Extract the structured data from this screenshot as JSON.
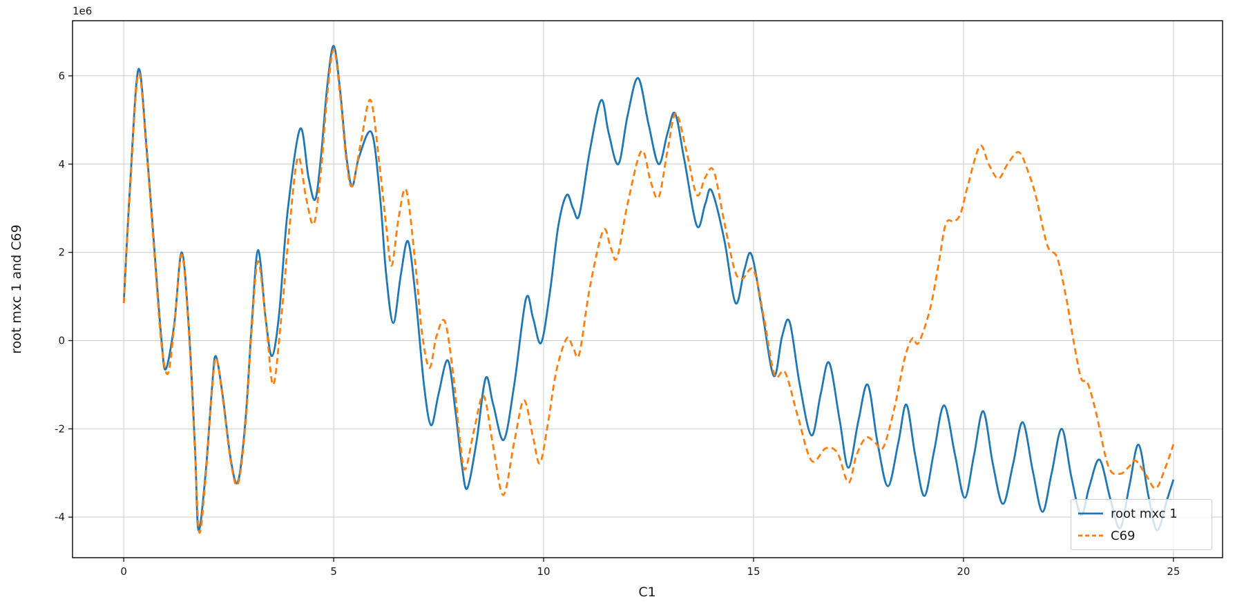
{
  "chart_data": {
    "type": "line",
    "title": "",
    "xlabel": "C1",
    "ylabel": "root mxc 1 and C69",
    "y_offset_label": "1e6",
    "y_unit_multiplier": 1000000,
    "xlim": [
      -1.22,
      26.17
    ],
    "ylim": [
      -4.92,
      7.25
    ],
    "xticks": [
      0,
      5,
      10,
      15,
      20,
      25
    ],
    "yticks": [
      -4,
      -2,
      0,
      2,
      4,
      6
    ],
    "grid": true,
    "grid_color": "#cccccc",
    "spine_color": "#000000",
    "legend_position": "lower right",
    "series": [
      {
        "name": "root mxc 1",
        "color": "#1f77b4",
        "style": "solid",
        "dash": null,
        "points": [
          [
            0,
            0.85
          ],
          [
            0.15,
            3.5
          ],
          [
            0.35,
            6.15
          ],
          [
            0.55,
            4.3
          ],
          [
            0.75,
            1.8
          ],
          [
            0.9,
            0.0
          ],
          [
            1.0,
            -0.65
          ],
          [
            1.2,
            0.35
          ],
          [
            1.38,
            2.0
          ],
          [
            1.55,
            0.3
          ],
          [
            1.7,
            -2.5
          ],
          [
            1.78,
            -4.3
          ],
          [
            1.95,
            -3.0
          ],
          [
            2.1,
            -1.1
          ],
          [
            2.19,
            -0.35
          ],
          [
            2.35,
            -1.2
          ],
          [
            2.55,
            -2.7
          ],
          [
            2.72,
            -3.2
          ],
          [
            2.9,
            -1.8
          ],
          [
            3.05,
            0.4
          ],
          [
            3.2,
            2.05
          ],
          [
            3.38,
            0.5
          ],
          [
            3.53,
            -0.35
          ],
          [
            3.7,
            0.6
          ],
          [
            3.9,
            2.9
          ],
          [
            4.2,
            4.8
          ],
          [
            4.4,
            3.7
          ],
          [
            4.56,
            3.2
          ],
          [
            4.7,
            4.2
          ],
          [
            4.85,
            5.8
          ],
          [
            5.0,
            6.68
          ],
          [
            5.15,
            5.7
          ],
          [
            5.3,
            4.2
          ],
          [
            5.44,
            3.5
          ],
          [
            5.6,
            4.15
          ],
          [
            5.9,
            4.72
          ],
          [
            6.1,
            3.3
          ],
          [
            6.25,
            1.5
          ],
          [
            6.42,
            0.4
          ],
          [
            6.6,
            1.5
          ],
          [
            6.77,
            2.25
          ],
          [
            6.95,
            1.0
          ],
          [
            7.15,
            -1.0
          ],
          [
            7.32,
            -1.92
          ],
          [
            7.5,
            -1.2
          ],
          [
            7.72,
            -0.45
          ],
          [
            7.9,
            -1.6
          ],
          [
            8.05,
            -2.8
          ],
          [
            8.18,
            -3.35
          ],
          [
            8.4,
            -2.3
          ],
          [
            8.62,
            -0.85
          ],
          [
            8.8,
            -1.45
          ],
          [
            9.05,
            -2.25
          ],
          [
            9.3,
            -1.0
          ],
          [
            9.58,
            0.95
          ],
          [
            9.75,
            0.5
          ],
          [
            9.94,
            -0.05
          ],
          [
            10.15,
            1.1
          ],
          [
            10.35,
            2.6
          ],
          [
            10.55,
            3.3
          ],
          [
            10.7,
            3.0
          ],
          [
            10.85,
            2.85
          ],
          [
            11.1,
            4.3
          ],
          [
            11.37,
            5.45
          ],
          [
            11.55,
            4.7
          ],
          [
            11.78,
            4.0
          ],
          [
            12.0,
            5.1
          ],
          [
            12.25,
            5.95
          ],
          [
            12.5,
            4.9
          ],
          [
            12.74,
            4.0
          ],
          [
            12.95,
            4.7
          ],
          [
            13.13,
            5.15
          ],
          [
            13.35,
            4.1
          ],
          [
            13.65,
            2.6
          ],
          [
            13.85,
            3.1
          ],
          [
            14.0,
            3.4
          ],
          [
            14.3,
            2.3
          ],
          [
            14.57,
            0.85
          ],
          [
            14.78,
            1.6
          ],
          [
            14.95,
            1.95
          ],
          [
            15.2,
            0.7
          ],
          [
            15.48,
            -0.8
          ],
          [
            15.68,
            0.1
          ],
          [
            15.86,
            0.42
          ],
          [
            16.1,
            -1.0
          ],
          [
            16.38,
            -2.15
          ],
          [
            16.6,
            -1.2
          ],
          [
            16.8,
            -0.5
          ],
          [
            17.05,
            -1.8
          ],
          [
            17.26,
            -2.88
          ],
          [
            17.5,
            -1.8
          ],
          [
            17.72,
            -1.0
          ],
          [
            17.95,
            -2.3
          ],
          [
            18.2,
            -3.3
          ],
          [
            18.45,
            -2.3
          ],
          [
            18.64,
            -1.45
          ],
          [
            18.85,
            -2.6
          ],
          [
            19.07,
            -3.52
          ],
          [
            19.3,
            -2.5
          ],
          [
            19.54,
            -1.47
          ],
          [
            19.8,
            -2.6
          ],
          [
            20.03,
            -3.56
          ],
          [
            20.25,
            -2.6
          ],
          [
            20.47,
            -1.6
          ],
          [
            20.7,
            -2.8
          ],
          [
            20.94,
            -3.7
          ],
          [
            21.18,
            -2.8
          ],
          [
            21.41,
            -1.85
          ],
          [
            21.65,
            -2.95
          ],
          [
            21.88,
            -3.88
          ],
          [
            22.1,
            -3.0
          ],
          [
            22.34,
            -2.0
          ],
          [
            22.57,
            -3.1
          ],
          [
            22.8,
            -3.95
          ],
          [
            23.0,
            -3.3
          ],
          [
            23.24,
            -2.7
          ],
          [
            23.5,
            -3.6
          ],
          [
            23.73,
            -4.25
          ],
          [
            23.95,
            -3.3
          ],
          [
            24.17,
            -2.36
          ],
          [
            24.4,
            -3.5
          ],
          [
            24.61,
            -4.3
          ],
          [
            24.85,
            -3.6
          ],
          [
            25.0,
            -3.15
          ]
        ]
      },
      {
        "name": "C69",
        "color": "#ff7f0e",
        "style": "dashed",
        "dash": [
          9,
          5.5
        ],
        "points": [
          [
            0,
            0.85
          ],
          [
            0.15,
            3.4
          ],
          [
            0.35,
            6.05
          ],
          [
            0.55,
            4.2
          ],
          [
            0.75,
            1.7
          ],
          [
            0.9,
            -0.1
          ],
          [
            1.05,
            -0.75
          ],
          [
            1.2,
            0.3
          ],
          [
            1.38,
            1.95
          ],
          [
            1.55,
            0.2
          ],
          [
            1.7,
            -2.6
          ],
          [
            1.8,
            -4.35
          ],
          [
            1.95,
            -3.1
          ],
          [
            2.1,
            -1.15
          ],
          [
            2.2,
            -0.4
          ],
          [
            2.35,
            -1.25
          ],
          [
            2.55,
            -2.75
          ],
          [
            2.72,
            -3.25
          ],
          [
            2.9,
            -1.9
          ],
          [
            3.05,
            0.3
          ],
          [
            3.2,
            1.8
          ],
          [
            3.4,
            0.3
          ],
          [
            3.56,
            -1.0
          ],
          [
            3.75,
            0.5
          ],
          [
            3.95,
            2.6
          ],
          [
            4.15,
            4.15
          ],
          [
            4.35,
            3.2
          ],
          [
            4.53,
            2.65
          ],
          [
            4.7,
            3.9
          ],
          [
            4.85,
            5.6
          ],
          [
            5.0,
            6.6
          ],
          [
            5.15,
            5.6
          ],
          [
            5.3,
            4.1
          ],
          [
            5.44,
            3.5
          ],
          [
            5.65,
            4.5
          ],
          [
            5.88,
            5.45
          ],
          [
            6.1,
            3.9
          ],
          [
            6.25,
            2.6
          ],
          [
            6.38,
            1.7
          ],
          [
            6.55,
            2.8
          ],
          [
            6.73,
            3.4
          ],
          [
            6.95,
            1.7
          ],
          [
            7.1,
            0.2
          ],
          [
            7.28,
            -0.62
          ],
          [
            7.45,
            0.1
          ],
          [
            7.65,
            0.43
          ],
          [
            7.85,
            -0.8
          ],
          [
            8.0,
            -2.2
          ],
          [
            8.13,
            -2.92
          ],
          [
            8.35,
            -2.0
          ],
          [
            8.57,
            -1.25
          ],
          [
            8.8,
            -2.4
          ],
          [
            9.04,
            -3.5
          ],
          [
            9.3,
            -2.3
          ],
          [
            9.53,
            -1.35
          ],
          [
            9.75,
            -2.2
          ],
          [
            9.91,
            -2.78
          ],
          [
            10.1,
            -1.9
          ],
          [
            10.3,
            -0.7
          ],
          [
            10.55,
            0.05
          ],
          [
            10.7,
            -0.15
          ],
          [
            10.85,
            -0.3
          ],
          [
            11.1,
            1.2
          ],
          [
            11.42,
            2.5
          ],
          [
            11.6,
            2.1
          ],
          [
            11.75,
            1.88
          ],
          [
            12.0,
            3.1
          ],
          [
            12.33,
            4.3
          ],
          [
            12.55,
            3.6
          ],
          [
            12.74,
            3.25
          ],
          [
            12.95,
            4.3
          ],
          [
            13.15,
            5.15
          ],
          [
            13.4,
            4.3
          ],
          [
            13.65,
            3.3
          ],
          [
            13.85,
            3.7
          ],
          [
            14.05,
            3.85
          ],
          [
            14.3,
            2.7
          ],
          [
            14.55,
            1.6
          ],
          [
            14.73,
            1.4
          ],
          [
            15.0,
            1.6
          ],
          [
            15.25,
            0.5
          ],
          [
            15.5,
            -0.78
          ],
          [
            15.75,
            -0.72
          ],
          [
            16.05,
            -1.7
          ],
          [
            16.38,
            -2.72
          ],
          [
            16.72,
            -2.44
          ],
          [
            17.0,
            -2.55
          ],
          [
            17.26,
            -3.22
          ],
          [
            17.45,
            -2.6
          ],
          [
            17.68,
            -2.2
          ],
          [
            17.9,
            -2.32
          ],
          [
            18.09,
            -2.42
          ],
          [
            18.35,
            -1.55
          ],
          [
            18.6,
            -0.4
          ],
          [
            18.78,
            0.05
          ],
          [
            18.93,
            -0.05
          ],
          [
            19.2,
            0.7
          ],
          [
            19.4,
            1.7
          ],
          [
            19.58,
            2.65
          ],
          [
            19.78,
            2.7
          ],
          [
            19.93,
            2.88
          ],
          [
            20.1,
            3.5
          ],
          [
            20.39,
            4.41
          ],
          [
            20.6,
            4.0
          ],
          [
            20.83,
            3.67
          ],
          [
            21.05,
            4.0
          ],
          [
            21.32,
            4.27
          ],
          [
            21.55,
            3.8
          ],
          [
            21.73,
            3.25
          ],
          [
            22.0,
            2.15
          ],
          [
            22.23,
            1.88
          ],
          [
            22.45,
            0.95
          ],
          [
            22.62,
            0.0
          ],
          [
            22.8,
            -0.85
          ],
          [
            22.95,
            -0.95
          ],
          [
            23.15,
            -1.6
          ],
          [
            23.45,
            -2.85
          ],
          [
            23.73,
            -3.02
          ],
          [
            23.95,
            -2.85
          ],
          [
            24.1,
            -2.72
          ],
          [
            24.35,
            -3.05
          ],
          [
            24.58,
            -3.35
          ],
          [
            24.8,
            -2.9
          ],
          [
            25.0,
            -2.35
          ]
        ]
      }
    ]
  },
  "legend": {
    "entries": [
      "root mxc 1",
      "C69"
    ]
  }
}
